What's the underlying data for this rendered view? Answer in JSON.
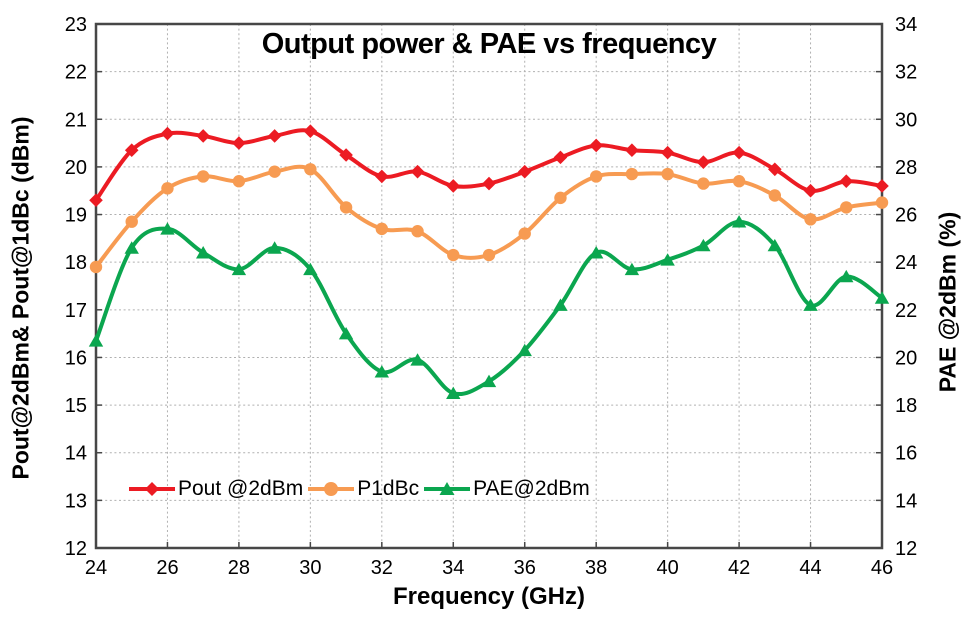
{
  "chart_data": {
    "type": "line",
    "title": "Output power & PAE vs frequency",
    "grid": true,
    "legend_position": "bottom-inside",
    "x": [
      24,
      25,
      26,
      27,
      28,
      29,
      30,
      31,
      32,
      33,
      34,
      35,
      36,
      37,
      38,
      39,
      40,
      41,
      42,
      43,
      44,
      45,
      46
    ],
    "x_axis": {
      "label": "Frequency (GHz)",
      "range": [
        24,
        46
      ],
      "tick_step": 2,
      "ticks": [
        24,
        26,
        28,
        30,
        32,
        34,
        36,
        38,
        40,
        42,
        44,
        46
      ]
    },
    "left_axis": {
      "label": "Pout@2dBm& Pout@1dBc (dBm)",
      "range": [
        12,
        23
      ],
      "tick_step": 1,
      "ticks": [
        23,
        22,
        21,
        20,
        19,
        18,
        17,
        16,
        15,
        14,
        13,
        12
      ]
    },
    "right_axis": {
      "label": "PAE @2dBm (%)",
      "range": [
        12,
        34
      ],
      "tick_step": 2,
      "ticks": [
        34,
        32,
        30,
        28,
        26,
        24,
        22,
        20,
        18,
        16,
        14,
        12
      ]
    },
    "series": [
      {
        "name": "Pout @2dBm",
        "axis": "left",
        "color": "#EC1B23",
        "marker": "diamond",
        "values": [
          19.3,
          20.35,
          20.7,
          20.65,
          20.5,
          20.65,
          20.75,
          20.25,
          19.8,
          19.9,
          19.6,
          19.65,
          19.9,
          20.2,
          20.45,
          20.35,
          20.3,
          20.1,
          20.3,
          19.95,
          19.5,
          19.7,
          19.6
        ]
      },
      {
        "name": "P1dBc",
        "axis": "left",
        "color": "#F79B52",
        "marker": "circle",
        "values": [
          17.9,
          18.85,
          19.55,
          19.8,
          19.7,
          19.9,
          19.95,
          19.15,
          18.7,
          18.65,
          18.15,
          18.15,
          18.6,
          19.35,
          19.8,
          19.85,
          19.85,
          19.65,
          19.7,
          19.4,
          18.9,
          19.15,
          19.25
        ]
      },
      {
        "name": "PAE@2dBm",
        "axis": "right",
        "color": "#0BA64F",
        "marker": "triangle",
        "values": [
          20.7,
          24.6,
          25.4,
          24.4,
          23.7,
          24.6,
          23.7,
          21.0,
          19.4,
          19.9,
          18.5,
          19.0,
          20.3,
          22.2,
          24.4,
          23.7,
          24.1,
          24.7,
          25.7,
          24.7,
          22.2,
          23.4,
          22.5
        ]
      }
    ],
    "colors": {
      "grid": "#B0B0B0",
      "axis": "#474747",
      "text": "#000000",
      "background": "#FFFFFF"
    }
  }
}
